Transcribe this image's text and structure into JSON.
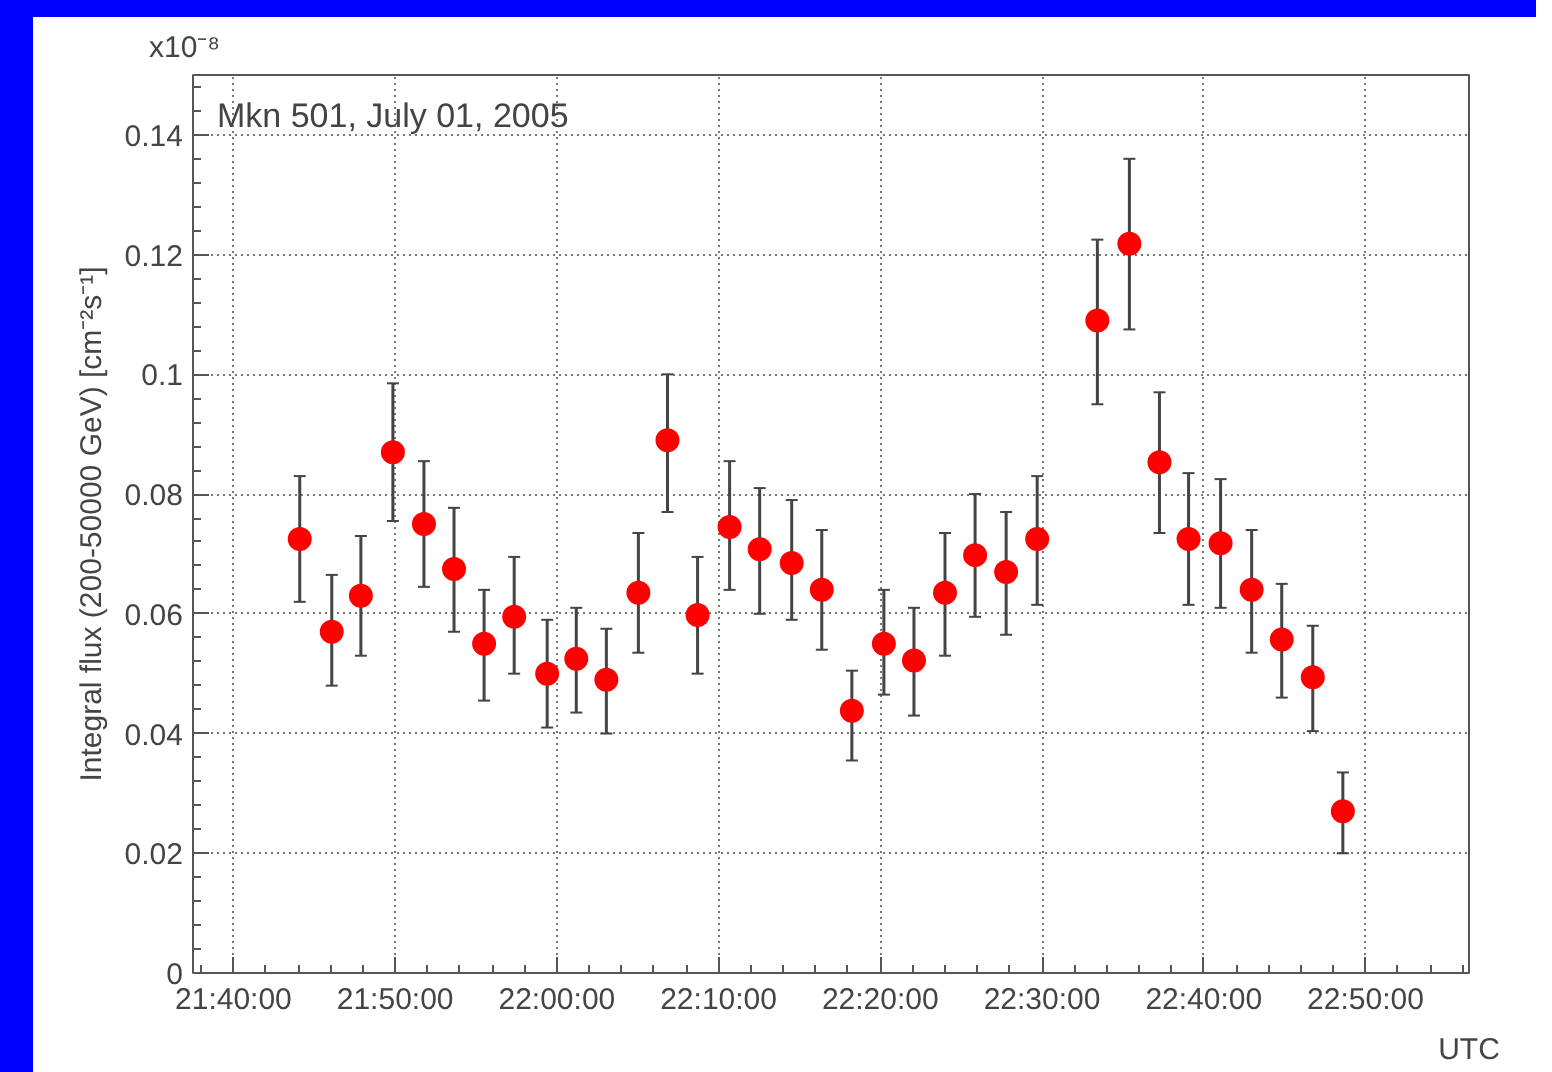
{
  "chart_data": {
    "type": "scatter",
    "title": "Mkn 501, July 01, 2005",
    "xlabel": "UTC",
    "ylabel": "Integral flux (200-50000 GeV) [cm⁻²s⁻¹]",
    "annotations": [
      "x10⁻⁸"
    ],
    "x": [
      21.735,
      21.768,
      21.798,
      21.831,
      21.863,
      21.894,
      21.925,
      21.956,
      21.99,
      22.02,
      22.051,
      22.084,
      22.114,
      22.145,
      22.178,
      22.209,
      22.242,
      22.273,
      22.304,
      22.337,
      22.368,
      22.4,
      22.431,
      22.463,
      22.495,
      22.557,
      22.59,
      22.621,
      22.651,
      22.684,
      22.716,
      22.747,
      22.779,
      22.81
    ],
    "series": [
      {
        "color": "#ff0000",
        "values": [
          0.0725,
          0.057,
          0.063,
          0.087,
          0.075,
          0.0675,
          0.055,
          0.0595,
          0.05,
          0.0525,
          0.049,
          0.0635,
          0.089,
          0.0598,
          0.0745,
          0.0708,
          0.0685,
          0.064,
          0.0438,
          0.055,
          0.0522,
          0.0635,
          0.0698,
          0.067,
          0.0725,
          0.109,
          0.1218,
          0.0853,
          0.0725,
          0.0718,
          0.064,
          0.0557,
          0.0494,
          0.027
        ],
        "errors": [
          [
            0.062,
            0.083
          ],
          [
            0.048,
            0.0665
          ],
          [
            0.053,
            0.073
          ],
          [
            0.0755,
            0.0985
          ],
          [
            0.0645,
            0.0855
          ],
          [
            0.057,
            0.0777
          ],
          [
            0.0455,
            0.064
          ],
          [
            0.05,
            0.0695
          ],
          [
            0.041,
            0.059
          ],
          [
            0.0435,
            0.061
          ],
          [
            0.04,
            0.0575
          ],
          [
            0.0535,
            0.0735
          ],
          [
            0.077,
            0.1
          ],
          [
            0.05,
            0.0695
          ],
          [
            0.064,
            0.0855
          ],
          [
            0.06,
            0.081
          ],
          [
            0.059,
            0.079
          ],
          [
            0.054,
            0.074
          ],
          [
            0.0355,
            0.0505
          ],
          [
            0.0465,
            0.064
          ],
          [
            0.043,
            0.061
          ],
          [
            0.053,
            0.0735
          ],
          [
            0.0595,
            0.08
          ],
          [
            0.0565,
            0.077
          ],
          [
            0.0615,
            0.083
          ],
          [
            0.095,
            0.1225
          ],
          [
            0.1075,
            0.136
          ],
          [
            0.0735,
            0.097
          ],
          [
            0.0615,
            0.0835
          ],
          [
            0.061,
            0.0825
          ],
          [
            0.0535,
            0.074
          ],
          [
            0.046,
            0.065
          ],
          [
            0.0404,
            0.058
          ],
          [
            0.02,
            0.0335
          ]
        ]
      }
    ],
    "marker": "circle",
    "grid": true,
    "xlim": [
      21.625,
      22.94
    ],
    "xticks": [
      {
        "value": 21.666667,
        "label": "21:40:00"
      },
      {
        "value": 21.833333,
        "label": "21:50:00"
      },
      {
        "value": 22.0,
        "label": "22:00:00"
      },
      {
        "value": 22.166667,
        "label": "22:10:00"
      },
      {
        "value": 22.333333,
        "label": "22:20:00"
      },
      {
        "value": 22.5,
        "label": "22:30:00"
      },
      {
        "value": 22.666667,
        "label": "22:40:00"
      },
      {
        "value": 22.833333,
        "label": "22:50:00"
      }
    ],
    "ylim": [
      0,
      0.15
    ],
    "yticks": [
      0,
      0.02,
      0.04,
      0.06,
      0.08,
      {
        "value": 0.1,
        "label": "0.1"
      },
      0.12,
      0.14
    ]
  }
}
